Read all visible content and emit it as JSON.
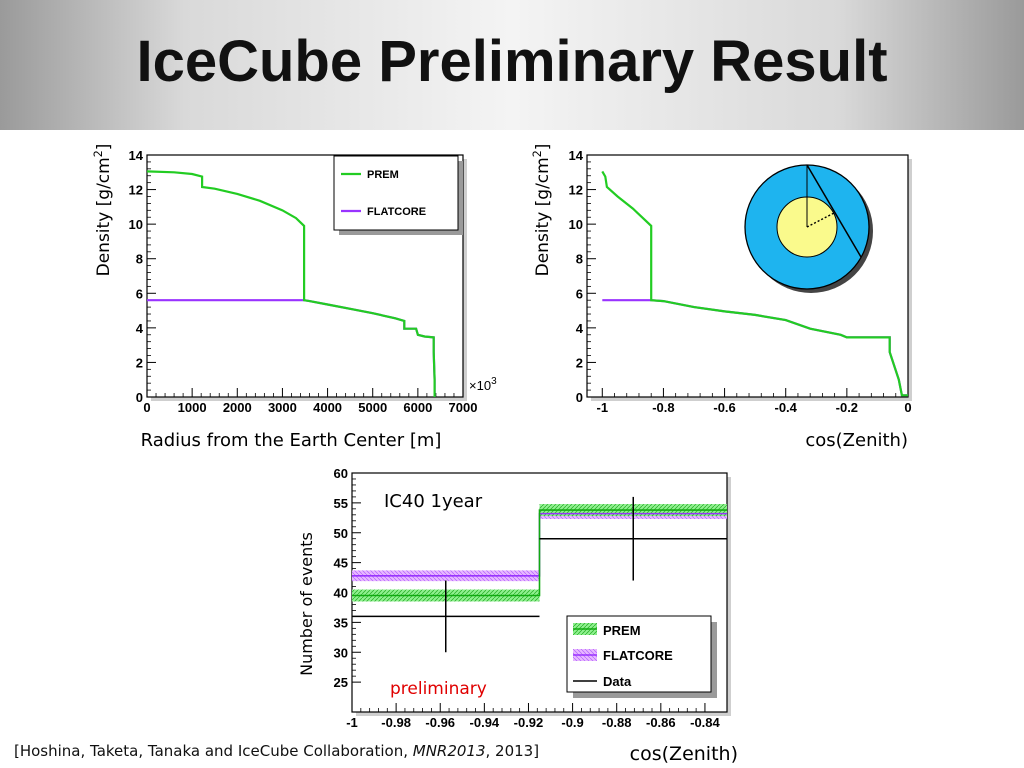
{
  "slide": {
    "title": "IceCube Preliminary Result",
    "citation": {
      "prefix": "[Hoshina, Taketa, Tanaka and IceCube Collaboration, ",
      "journal": "MNR2013",
      "suffix": ", 2013]"
    }
  },
  "colors": {
    "prem": "#22cc22",
    "flatcore": "#9933ff",
    "data": "#000000",
    "inset_outer": "#1eb4ef",
    "inset_inner": "#fafa8c",
    "preliminary": "#e00000"
  },
  "chart_data": [
    {
      "id": "radius",
      "type": "line",
      "xlabel": "Radius from the Earth Center [m]",
      "ylabel": "Density [g/cm",
      "ylabel_sup": "2",
      "ylabel_close": "]",
      "x_multiplier": "×10",
      "x_multiplier_exp": "3",
      "xlim": [
        0,
        7000
      ],
      "ylim": [
        0,
        14
      ],
      "xticks": [
        0,
        1000,
        2000,
        3000,
        4000,
        5000,
        6000,
        7000
      ],
      "yticks": [
        0,
        2,
        4,
        6,
        8,
        10,
        12,
        14
      ],
      "legend": [
        "PREM",
        "FLATCORE"
      ],
      "series": [
        {
          "name": "PREM",
          "points": [
            [
              0,
              13.05
            ],
            [
              600,
              13.0
            ],
            [
              1000,
              12.9
            ],
            [
              1220,
              12.75
            ],
            [
              1220,
              12.15
            ],
            [
              1500,
              12.05
            ],
            [
              2000,
              11.75
            ],
            [
              2500,
              11.35
            ],
            [
              3000,
              10.8
            ],
            [
              3300,
              10.35
            ],
            [
              3480,
              9.9
            ],
            [
              3480,
              5.6
            ],
            [
              3600,
              5.55
            ],
            [
              4000,
              5.35
            ],
            [
              4500,
              5.1
            ],
            [
              5000,
              4.85
            ],
            [
              5500,
              4.55
            ],
            [
              5700,
              4.4
            ],
            [
              5700,
              3.95
            ],
            [
              5960,
              3.95
            ],
            [
              6000,
              3.6
            ],
            [
              6150,
              3.5
            ],
            [
              6350,
              3.45
            ],
            [
              6350,
              2.6
            ],
            [
              6370,
              1.0
            ],
            [
              6371,
              0
            ]
          ]
        },
        {
          "name": "FLATCORE",
          "points": [
            [
              0,
              5.6
            ],
            [
              3480,
              5.6
            ],
            [
              3600,
              5.55
            ],
            [
              4000,
              5.35
            ],
            [
              4500,
              5.1
            ],
            [
              5000,
              4.85
            ],
            [
              5500,
              4.55
            ],
            [
              5700,
              4.4
            ],
            [
              5700,
              3.95
            ],
            [
              5960,
              3.95
            ],
            [
              6000,
              3.6
            ],
            [
              6150,
              3.5
            ],
            [
              6350,
              3.45
            ],
            [
              6350,
              2.6
            ],
            [
              6370,
              1.0
            ],
            [
              6371,
              0
            ]
          ]
        }
      ]
    },
    {
      "id": "zenith",
      "type": "line",
      "xlabel": "cos(Zenith)",
      "ylabel": "Density [g/cm",
      "ylabel_sup": "2",
      "ylabel_close": "]",
      "xlim": [
        -1.05,
        0.0
      ],
      "ylim": [
        0,
        14
      ],
      "xticks": [
        -1,
        -0.8,
        -0.6,
        -0.4,
        -0.2,
        0
      ],
      "yticks": [
        0,
        2,
        4,
        6,
        8,
        10,
        12,
        14
      ],
      "series": [
        {
          "name": "PREM",
          "points": [
            [
              -1.0,
              13.05
            ],
            [
              -0.99,
              12.75
            ],
            [
              -0.985,
              12.15
            ],
            [
              -0.95,
              11.6
            ],
            [
              -0.9,
              10.9
            ],
            [
              -0.87,
              10.4
            ],
            [
              -0.84,
              9.9
            ],
            [
              -0.84,
              5.6
            ],
            [
              -0.8,
              5.55
            ],
            [
              -0.7,
              5.2
            ],
            [
              -0.6,
              4.95
            ],
            [
              -0.5,
              4.75
            ],
            [
              -0.4,
              4.45
            ],
            [
              -0.32,
              3.95
            ],
            [
              -0.22,
              3.6
            ],
            [
              -0.2,
              3.45
            ],
            [
              -0.06,
              3.45
            ],
            [
              -0.06,
              2.6
            ],
            [
              -0.03,
              1.0
            ],
            [
              -0.02,
              0.1
            ],
            [
              0,
              0.1
            ]
          ]
        },
        {
          "name": "FLATCORE",
          "points": [
            [
              -1.0,
              5.6
            ],
            [
              -0.84,
              5.6
            ],
            [
              -0.8,
              5.55
            ],
            [
              -0.7,
              5.2
            ],
            [
              -0.6,
              4.95
            ],
            [
              -0.5,
              4.75
            ],
            [
              -0.4,
              4.45
            ],
            [
              -0.32,
              3.95
            ],
            [
              -0.22,
              3.6
            ],
            [
              -0.2,
              3.45
            ],
            [
              -0.06,
              3.45
            ],
            [
              -0.06,
              2.6
            ],
            [
              -0.03,
              1.0
            ],
            [
              -0.02,
              0.1
            ],
            [
              0,
              0.1
            ]
          ]
        }
      ]
    },
    {
      "id": "events",
      "type": "bar",
      "annotation": "IC40 1year",
      "watermark": "preliminary",
      "xlabel": "cos(Zenith)",
      "ylabel": "Number of events",
      "xlim": [
        -1.0,
        -0.83
      ],
      "ylim": [
        20,
        60
      ],
      "xticks": [
        -1,
        -0.98,
        -0.96,
        -0.94,
        -0.92,
        -0.9,
        -0.88,
        -0.86,
        -0.84
      ],
      "yticks": [
        25,
        30,
        35,
        40,
        45,
        50,
        55,
        60
      ],
      "bin_edges": [
        -1.0,
        -0.915,
        -0.83
      ],
      "legend": [
        "PREM",
        "FLATCORE",
        "Data"
      ],
      "series": [
        {
          "name": "PREM",
          "values": [
            39.5,
            53.8
          ],
          "band": [
            1.0,
            1.0
          ]
        },
        {
          "name": "FLATCORE",
          "values": [
            42.8,
            53.2
          ],
          "band": [
            0.9,
            0.9
          ]
        },
        {
          "name": "Data",
          "values": [
            36,
            49
          ],
          "errors": [
            [
              6,
              6
            ],
            [
              7,
              7
            ]
          ]
        }
      ]
    }
  ]
}
